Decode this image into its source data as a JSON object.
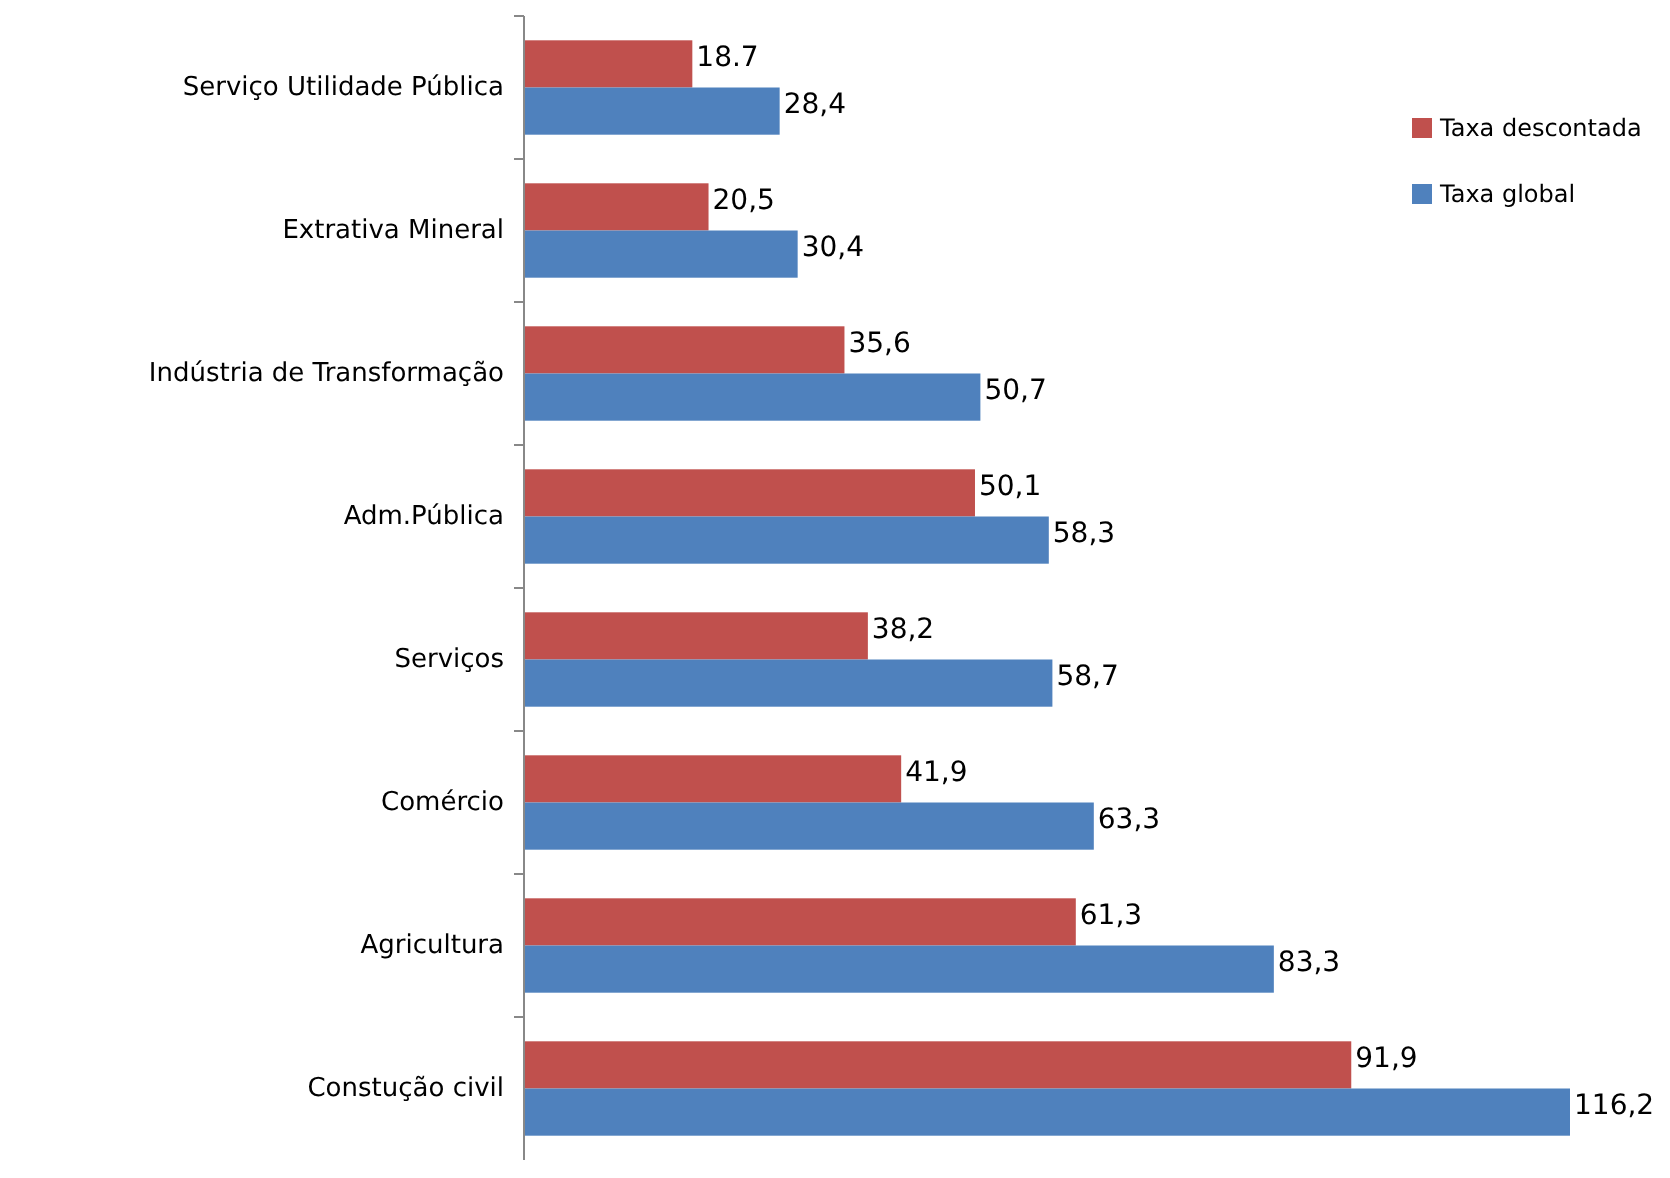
{
  "chart_data": {
    "type": "bar",
    "orientation": "horizontal",
    "legend": "top right",
    "categories": [
      "Serviço Utilidade Pública",
      "Extrativa Mineral",
      "Indústria de Transformação",
      "Adm.Pública",
      "Serviços",
      "Comércio",
      "Agricultura",
      "Constução civil"
    ],
    "series": [
      {
        "name": "Taxa descontada",
        "color": "#c0504d",
        "values": [
          18.7,
          20.5,
          35.6,
          50.1,
          38.2,
          41.9,
          61.3,
          91.9
        ],
        "value_labels": [
          "18.7",
          "20,5",
          "35,6",
          "50,1",
          "38,2",
          "41,9",
          "61,3",
          "91,9"
        ]
      },
      {
        "name": "Taxa global",
        "color": "#4f81bd",
        "values": [
          28.4,
          30.4,
          50.7,
          58.3,
          58.7,
          63.3,
          83.3,
          116.2
        ],
        "value_labels": [
          "28,4",
          "30,4",
          "50,7",
          "58,3",
          "58,7",
          "63,3",
          "83,3",
          "116,2"
        ]
      }
    ]
  }
}
